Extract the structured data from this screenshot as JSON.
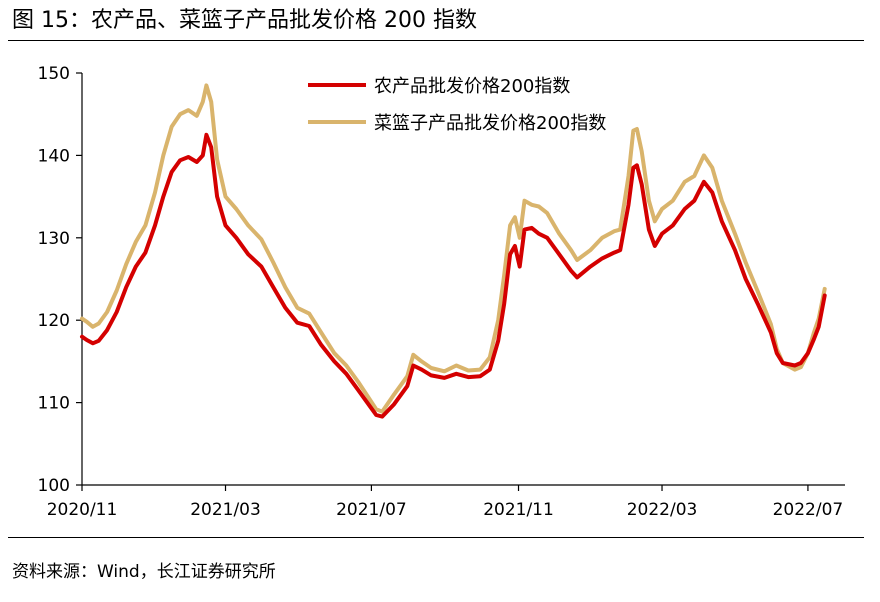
{
  "figure": {
    "title": "图 15：农产品、菜篮子产品批发价格 200 指数",
    "source": "资料来源：Wind，长江证券研究所"
  },
  "colors": {
    "series_1": "#d40000",
    "series_2": "#d9b46c",
    "axis": "#000000"
  },
  "chart_data": {
    "type": "line",
    "title": "",
    "xlabel": "",
    "ylabel": "",
    "ylim": [
      100,
      150
    ],
    "yticks": [
      100,
      110,
      120,
      130,
      140,
      150
    ],
    "xlim": [
      "2020-11-01",
      "2022-08-01"
    ],
    "xticks": [
      {
        "date": "2020-11-01",
        "label": "2020/11"
      },
      {
        "date": "2021-03-01",
        "label": "2021/03"
      },
      {
        "date": "2021-07-01",
        "label": "2021/07"
      },
      {
        "date": "2021-11-01",
        "label": "2021/11"
      },
      {
        "date": "2022-03-01",
        "label": "2022/03"
      },
      {
        "date": "2022-07-01",
        "label": "2022/07"
      }
    ],
    "grid": false,
    "legend": "top-center",
    "series": [
      {
        "name": "农产品批发价格200指数",
        "color": "#d40000",
        "points": [
          [
            "2020-11-01",
            118.0
          ],
          [
            "2020-11-05",
            117.6
          ],
          [
            "2020-11-10",
            117.2
          ],
          [
            "2020-11-15",
            117.5
          ],
          [
            "2020-11-22",
            118.8
          ],
          [
            "2020-11-30",
            121.0
          ],
          [
            "2020-12-08",
            124.0
          ],
          [
            "2020-12-16",
            126.5
          ],
          [
            "2020-12-24",
            128.2
          ],
          [
            "2021-01-01",
            131.5
          ],
          [
            "2021-01-08",
            135.0
          ],
          [
            "2021-01-15",
            138.0
          ],
          [
            "2021-01-22",
            139.4
          ],
          [
            "2021-01-29",
            139.8
          ],
          [
            "2021-02-05",
            139.2
          ],
          [
            "2021-02-10",
            140.0
          ],
          [
            "2021-02-13",
            142.5
          ],
          [
            "2021-02-17",
            141.0
          ],
          [
            "2021-02-22",
            135.0
          ],
          [
            "2021-03-01",
            131.5
          ],
          [
            "2021-03-10",
            130.0
          ],
          [
            "2021-03-20",
            128.0
          ],
          [
            "2021-03-31",
            126.5
          ],
          [
            "2021-04-10",
            124.0
          ],
          [
            "2021-04-20",
            121.5
          ],
          [
            "2021-04-30",
            119.7
          ],
          [
            "2021-05-10",
            119.3
          ],
          [
            "2021-05-20",
            117.0
          ],
          [
            "2021-05-31",
            115.0
          ],
          [
            "2021-06-10",
            113.5
          ],
          [
            "2021-06-20",
            111.5
          ],
          [
            "2021-06-30",
            109.5
          ],
          [
            "2021-07-05",
            108.5
          ],
          [
            "2021-07-10",
            108.3
          ],
          [
            "2021-07-20",
            109.8
          ],
          [
            "2021-07-31",
            112.0
          ],
          [
            "2021-08-05",
            114.5
          ],
          [
            "2021-08-12",
            114.0
          ],
          [
            "2021-08-20",
            113.3
          ],
          [
            "2021-08-31",
            113.0
          ],
          [
            "2021-09-10",
            113.5
          ],
          [
            "2021-09-20",
            113.1
          ],
          [
            "2021-09-30",
            113.2
          ],
          [
            "2021-10-08",
            114.0
          ],
          [
            "2021-10-15",
            117.5
          ],
          [
            "2021-10-20",
            122.0
          ],
          [
            "2021-10-25",
            128.0
          ],
          [
            "2021-10-29",
            129.0
          ],
          [
            "2021-11-02",
            126.5
          ],
          [
            "2021-11-06",
            131.0
          ],
          [
            "2021-11-12",
            131.2
          ],
          [
            "2021-11-18",
            130.5
          ],
          [
            "2021-11-25",
            130.0
          ],
          [
            "2021-12-05",
            128.0
          ],
          [
            "2021-12-15",
            126.0
          ],
          [
            "2021-12-20",
            125.2
          ],
          [
            "2021-12-31",
            126.5
          ],
          [
            "2022-01-10",
            127.5
          ],
          [
            "2022-01-20",
            128.2
          ],
          [
            "2022-01-25",
            128.5
          ],
          [
            "2022-02-01",
            134.0
          ],
          [
            "2022-02-05",
            138.5
          ],
          [
            "2022-02-08",
            138.8
          ],
          [
            "2022-02-12",
            136.5
          ],
          [
            "2022-02-18",
            131.0
          ],
          [
            "2022-02-23",
            129.0
          ],
          [
            "2022-03-01",
            130.5
          ],
          [
            "2022-03-10",
            131.5
          ],
          [
            "2022-03-20",
            133.5
          ],
          [
            "2022-03-28",
            134.5
          ],
          [
            "2022-04-05",
            136.8
          ],
          [
            "2022-04-12",
            135.5
          ],
          [
            "2022-04-20",
            132.0
          ],
          [
            "2022-05-01",
            128.5
          ],
          [
            "2022-05-10",
            125.0
          ],
          [
            "2022-05-20",
            122.0
          ],
          [
            "2022-05-31",
            118.5
          ],
          [
            "2022-06-05",
            116.0
          ],
          [
            "2022-06-10",
            114.8
          ],
          [
            "2022-06-20",
            114.5
          ],
          [
            "2022-06-25",
            114.8
          ],
          [
            "2022-07-01",
            116.0
          ],
          [
            "2022-07-06",
            117.7
          ],
          [
            "2022-07-10",
            119.2
          ],
          [
            "2022-07-15",
            123.0
          ]
        ]
      },
      {
        "name": "菜篮子产品批发价格200指数",
        "color": "#d9b46c",
        "points": [
          [
            "2020-11-01",
            120.2
          ],
          [
            "2020-11-05",
            119.8
          ],
          [
            "2020-11-10",
            119.2
          ],
          [
            "2020-11-15",
            119.6
          ],
          [
            "2020-11-22",
            121.0
          ],
          [
            "2020-11-30",
            123.6
          ],
          [
            "2020-12-08",
            126.8
          ],
          [
            "2020-12-16",
            129.5
          ],
          [
            "2020-12-24",
            131.5
          ],
          [
            "2021-01-01",
            135.5
          ],
          [
            "2021-01-08",
            140.0
          ],
          [
            "2021-01-15",
            143.5
          ],
          [
            "2021-01-22",
            145.0
          ],
          [
            "2021-01-29",
            145.5
          ],
          [
            "2021-02-05",
            144.8
          ],
          [
            "2021-02-10",
            146.5
          ],
          [
            "2021-02-13",
            148.5
          ],
          [
            "2021-02-17",
            146.5
          ],
          [
            "2021-02-22",
            139.5
          ],
          [
            "2021-03-01",
            135.0
          ],
          [
            "2021-03-10",
            133.5
          ],
          [
            "2021-03-20",
            131.5
          ],
          [
            "2021-03-31",
            129.8
          ],
          [
            "2021-04-10",
            127.0
          ],
          [
            "2021-04-20",
            124.0
          ],
          [
            "2021-04-30",
            121.5
          ],
          [
            "2021-05-10",
            120.8
          ],
          [
            "2021-05-20",
            118.5
          ],
          [
            "2021-05-31",
            116.0
          ],
          [
            "2021-06-10",
            114.5
          ],
          [
            "2021-06-20",
            112.5
          ],
          [
            "2021-06-30",
            110.3
          ],
          [
            "2021-07-05",
            109.2
          ],
          [
            "2021-07-10",
            108.9
          ],
          [
            "2021-07-20",
            111.0
          ],
          [
            "2021-07-31",
            113.2
          ],
          [
            "2021-08-05",
            115.8
          ],
          [
            "2021-08-12",
            115.0
          ],
          [
            "2021-08-20",
            114.2
          ],
          [
            "2021-08-31",
            113.8
          ],
          [
            "2021-09-10",
            114.5
          ],
          [
            "2021-09-20",
            113.9
          ],
          [
            "2021-09-30",
            114.0
          ],
          [
            "2021-10-08",
            115.5
          ],
          [
            "2021-10-15",
            120.0
          ],
          [
            "2021-10-20",
            125.5
          ],
          [
            "2021-10-25",
            131.5
          ],
          [
            "2021-10-29",
            132.5
          ],
          [
            "2021-11-02",
            130.0
          ],
          [
            "2021-11-06",
            134.5
          ],
          [
            "2021-11-12",
            134.0
          ],
          [
            "2021-11-18",
            133.8
          ],
          [
            "2021-11-25",
            133.0
          ],
          [
            "2021-12-05",
            130.5
          ],
          [
            "2021-12-15",
            128.5
          ],
          [
            "2021-12-20",
            127.3
          ],
          [
            "2021-12-31",
            128.5
          ],
          [
            "2022-01-10",
            130.0
          ],
          [
            "2022-01-20",
            130.8
          ],
          [
            "2022-01-25",
            131.0
          ],
          [
            "2022-02-01",
            137.5
          ],
          [
            "2022-02-05",
            143.0
          ],
          [
            "2022-02-08",
            143.2
          ],
          [
            "2022-02-12",
            140.5
          ],
          [
            "2022-02-18",
            134.5
          ],
          [
            "2022-02-23",
            132.0
          ],
          [
            "2022-03-01",
            133.5
          ],
          [
            "2022-03-10",
            134.5
          ],
          [
            "2022-03-20",
            136.8
          ],
          [
            "2022-03-28",
            137.5
          ],
          [
            "2022-04-05",
            140.0
          ],
          [
            "2022-04-12",
            138.5
          ],
          [
            "2022-04-20",
            134.5
          ],
          [
            "2022-05-01",
            130.5
          ],
          [
            "2022-05-10",
            127.0
          ],
          [
            "2022-05-20",
            123.5
          ],
          [
            "2022-05-31",
            119.5
          ],
          [
            "2022-06-05",
            116.5
          ],
          [
            "2022-06-10",
            114.8
          ],
          [
            "2022-06-20",
            114.0
          ],
          [
            "2022-06-25",
            114.3
          ],
          [
            "2022-07-01",
            116.0
          ],
          [
            "2022-07-06",
            118.5
          ],
          [
            "2022-07-10",
            120.2
          ],
          [
            "2022-07-15",
            123.8
          ]
        ]
      }
    ]
  }
}
